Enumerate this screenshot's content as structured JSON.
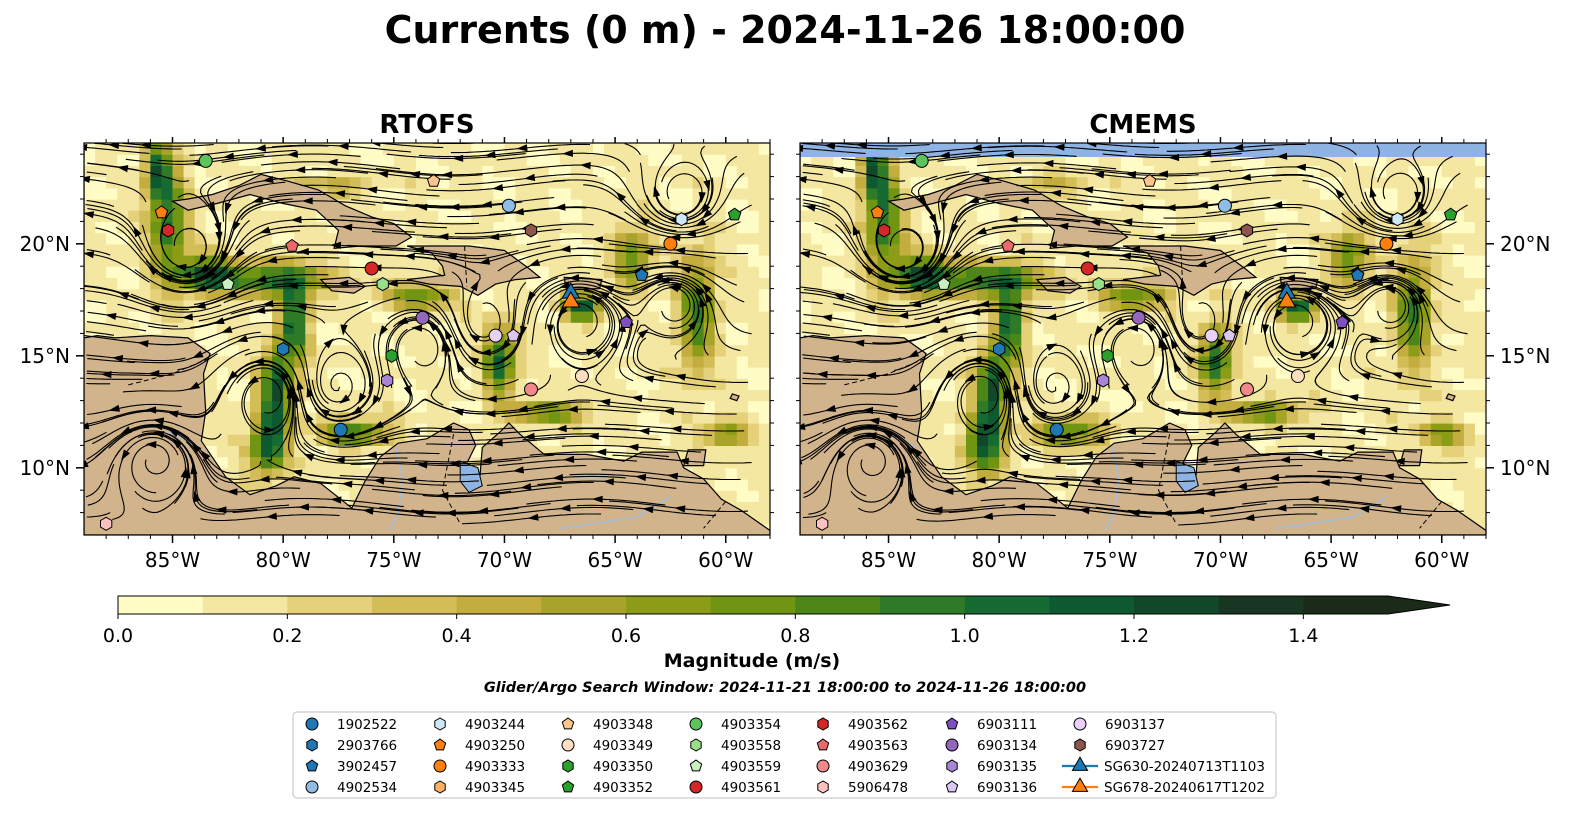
{
  "title": "Currents (0 m) - 2024-11-26 18:00:00",
  "colors": {
    "land": "#d2b48c",
    "water": "#8fb3e3",
    "river": "#a6bddb",
    "streamline": "#000000",
    "cmap": [
      "#fffcc6",
      "#f4e7a1",
      "#e4d179",
      "#d3bd57",
      "#c2ad3e",
      "#a7a429",
      "#8c9c17",
      "#6f9512",
      "#4d8618",
      "#2f7a27",
      "#156b32",
      "#0d5a30",
      "#12482a",
      "#173722",
      "#1b2a19"
    ]
  },
  "panels": [
    {
      "title": "RTOFS"
    },
    {
      "title": "CMEMS"
    }
  ],
  "axes": {
    "lon_ticks": [
      "85°W",
      "80°W",
      "75°W",
      "70°W",
      "65°W",
      "60°W"
    ],
    "lat_ticks": [
      "20°N",
      "15°N",
      "10°N"
    ],
    "lon_range": [
      -89,
      -58
    ],
    "lat_range": [
      7,
      24.5
    ]
  },
  "colorbar": {
    "label": "Magnitude (m/s)",
    "ticks": [
      "0.0",
      "0.2",
      "0.4",
      "0.6",
      "0.8",
      "1.0",
      "1.2",
      "1.4"
    ],
    "range": [
      0,
      1.5
    ],
    "extend": "max"
  },
  "search_window": "Glider/Argo Search Window: 2024-11-21 18:00:00 to 2024-11-26 18:00:00",
  "legend": [
    {
      "label": "1902522",
      "marker": "circle",
      "color": "#1f77b4"
    },
    {
      "label": "2903766",
      "marker": "hexagon",
      "color": "#1f77b4"
    },
    {
      "label": "3902457",
      "marker": "pentagon",
      "color": "#1f77b4"
    },
    {
      "label": "4902534",
      "marker": "circle",
      "color": "#8fbde6"
    },
    {
      "label": "4903244",
      "marker": "hexagon",
      "color": "#cfe8f7"
    },
    {
      "label": "4903250",
      "marker": "pentagon",
      "color": "#ff7f0e"
    },
    {
      "label": "4903333",
      "marker": "circle",
      "color": "#ff7f0e"
    },
    {
      "label": "4903345",
      "marker": "hexagon",
      "color": "#ffb266"
    },
    {
      "label": "4903348",
      "marker": "pentagon",
      "color": "#ffc58c"
    },
    {
      "label": "4903349",
      "marker": "circle",
      "color": "#ffdfc0"
    },
    {
      "label": "4903350",
      "marker": "hexagon",
      "color": "#2ca02c"
    },
    {
      "label": "4903352",
      "marker": "pentagon",
      "color": "#2ca02c"
    },
    {
      "label": "4903354",
      "marker": "circle",
      "color": "#5cc45c"
    },
    {
      "label": "4903558",
      "marker": "hexagon",
      "color": "#98df8a"
    },
    {
      "label": "4903559",
      "marker": "pentagon",
      "color": "#c9f0c0"
    },
    {
      "label": "4903561",
      "marker": "circle",
      "color": "#d62728"
    },
    {
      "label": "4903562",
      "marker": "hexagon",
      "color": "#d62728"
    },
    {
      "label": "4903563",
      "marker": "pentagon",
      "color": "#e96a6a"
    },
    {
      "label": "4903629",
      "marker": "circle",
      "color": "#f08a8a"
    },
    {
      "label": "5906478",
      "marker": "hexagon",
      "color": "#ffc0c0"
    },
    {
      "label": "6903111",
      "marker": "pentagon",
      "color": "#7f4fbf"
    },
    {
      "label": "6903134",
      "marker": "circle",
      "color": "#9467bd"
    },
    {
      "label": "6903135",
      "marker": "hexagon",
      "color": "#a985d6"
    },
    {
      "label": "6903136",
      "marker": "pentagon",
      "color": "#dcc6f5"
    },
    {
      "label": "6903137",
      "marker": "circle",
      "color": "#e8d0f8"
    },
    {
      "label": "6903727",
      "marker": "hexagon",
      "color": "#8c564b"
    },
    {
      "label": "SG630-20240713T1103",
      "marker": "triangle-line",
      "color": "#1f77b4"
    },
    {
      "label": "SG678-20240617T1202",
      "marker": "triangle-line",
      "color": "#ff7f0e"
    }
  ],
  "chart_data": [
    {
      "type": "heatmap",
      "title": "RTOFS",
      "xlabel": "",
      "ylabel": "",
      "xlim": [
        -89,
        -58
      ],
      "ylim": [
        7,
        24.5
      ],
      "value_range": [
        0,
        1.5
      ],
      "units": "m/s",
      "floats": [
        {
          "id": "4903354",
          "lon": -83.5,
          "lat": 23.7
        },
        {
          "id": "4903250",
          "lon": -85.5,
          "lat": 21.4
        },
        {
          "id": "4903562",
          "lon": -85.2,
          "lat": 20.6
        },
        {
          "id": "4903563",
          "lon": -79.6,
          "lat": 19.9
        },
        {
          "id": "4903559",
          "lon": -82.5,
          "lat": 18.2
        },
        {
          "id": "4903348",
          "lon": -73.2,
          "lat": 22.8
        },
        {
          "id": "4903561",
          "lon": -76.0,
          "lat": 18.9
        },
        {
          "id": "4903558",
          "lon": -75.5,
          "lat": 18.2
        },
        {
          "id": "4902534",
          "lon": -69.8,
          "lat": 21.7
        },
        {
          "id": "6903727",
          "lon": -68.8,
          "lat": 20.6
        },
        {
          "id": "4903244",
          "lon": -62.0,
          "lat": 21.1
        },
        {
          "id": "4903352",
          "lon": -59.6,
          "lat": 21.3
        },
        {
          "id": "4903333",
          "lon": -62.5,
          "lat": 20.0
        },
        {
          "id": "3902457",
          "lon": -63.8,
          "lat": 18.6
        },
        {
          "id": "SG630-20240713T1103",
          "lon": -67.0,
          "lat": 17.8
        },
        {
          "id": "SG678-20240617T1202",
          "lon": -67.0,
          "lat": 17.4
        },
        {
          "id": "6903134",
          "lon": -73.7,
          "lat": 16.7
        },
        {
          "id": "6903111",
          "lon": -64.5,
          "lat": 16.5
        },
        {
          "id": "6903137",
          "lon": -70.4,
          "lat": 15.9
        },
        {
          "id": "6903136",
          "lon": -69.6,
          "lat": 15.9
        },
        {
          "id": "2903766",
          "lon": -80.0,
          "lat": 15.3
        },
        {
          "id": "4903350",
          "lon": -75.1,
          "lat": 15.0
        },
        {
          "id": "6903135",
          "lon": -75.3,
          "lat": 13.9
        },
        {
          "id": "4903629",
          "lon": -68.8,
          "lat": 13.5
        },
        {
          "id": "4903349",
          "lon": -66.5,
          "lat": 14.1
        },
        {
          "id": "1902522",
          "lon": -77.4,
          "lat": 11.7
        },
        {
          "id": "5906478",
          "lon": -88.0,
          "lat": 7.5
        }
      ]
    },
    {
      "type": "heatmap",
      "title": "CMEMS",
      "xlabel": "",
      "ylabel": "",
      "xlim": [
        -89,
        -58
      ],
      "ylim": [
        7,
        24.5
      ],
      "value_range": [
        0,
        1.5
      ],
      "units": "m/s",
      "floats": [
        {
          "id": "4903354",
          "lon": -83.5,
          "lat": 23.7
        },
        {
          "id": "4903250",
          "lon": -85.5,
          "lat": 21.4
        },
        {
          "id": "4903562",
          "lon": -85.2,
          "lat": 20.6
        },
        {
          "id": "4903563",
          "lon": -79.6,
          "lat": 19.9
        },
        {
          "id": "4903559",
          "lon": -82.5,
          "lat": 18.2
        },
        {
          "id": "4903348",
          "lon": -73.2,
          "lat": 22.8
        },
        {
          "id": "4903561",
          "lon": -76.0,
          "lat": 18.9
        },
        {
          "id": "4903558",
          "lon": -75.5,
          "lat": 18.2
        },
        {
          "id": "4902534",
          "lon": -69.8,
          "lat": 21.7
        },
        {
          "id": "6903727",
          "lon": -68.8,
          "lat": 20.6
        },
        {
          "id": "4903244",
          "lon": -62.0,
          "lat": 21.1
        },
        {
          "id": "4903352",
          "lon": -59.6,
          "lat": 21.3
        },
        {
          "id": "4903333",
          "lon": -62.5,
          "lat": 20.0
        },
        {
          "id": "3902457",
          "lon": -63.8,
          "lat": 18.6
        },
        {
          "id": "SG630-20240713T1103",
          "lon": -67.0,
          "lat": 17.8
        },
        {
          "id": "SG678-20240617T1202",
          "lon": -67.0,
          "lat": 17.4
        },
        {
          "id": "6903134",
          "lon": -73.7,
          "lat": 16.7
        },
        {
          "id": "6903111",
          "lon": -64.5,
          "lat": 16.5
        },
        {
          "id": "6903137",
          "lon": -70.4,
          "lat": 15.9
        },
        {
          "id": "6903136",
          "lon": -69.6,
          "lat": 15.9
        },
        {
          "id": "2903766",
          "lon": -80.0,
          "lat": 15.3
        },
        {
          "id": "4903350",
          "lon": -75.1,
          "lat": 15.0
        },
        {
          "id": "6903135",
          "lon": -75.3,
          "lat": 13.9
        },
        {
          "id": "4903629",
          "lon": -68.8,
          "lat": 13.5
        },
        {
          "id": "4903349",
          "lon": -66.5,
          "lat": 14.1
        },
        {
          "id": "1902522",
          "lon": -77.4,
          "lat": 11.7
        },
        {
          "id": "5906478",
          "lon": -88.0,
          "lat": 7.5
        }
      ]
    }
  ]
}
